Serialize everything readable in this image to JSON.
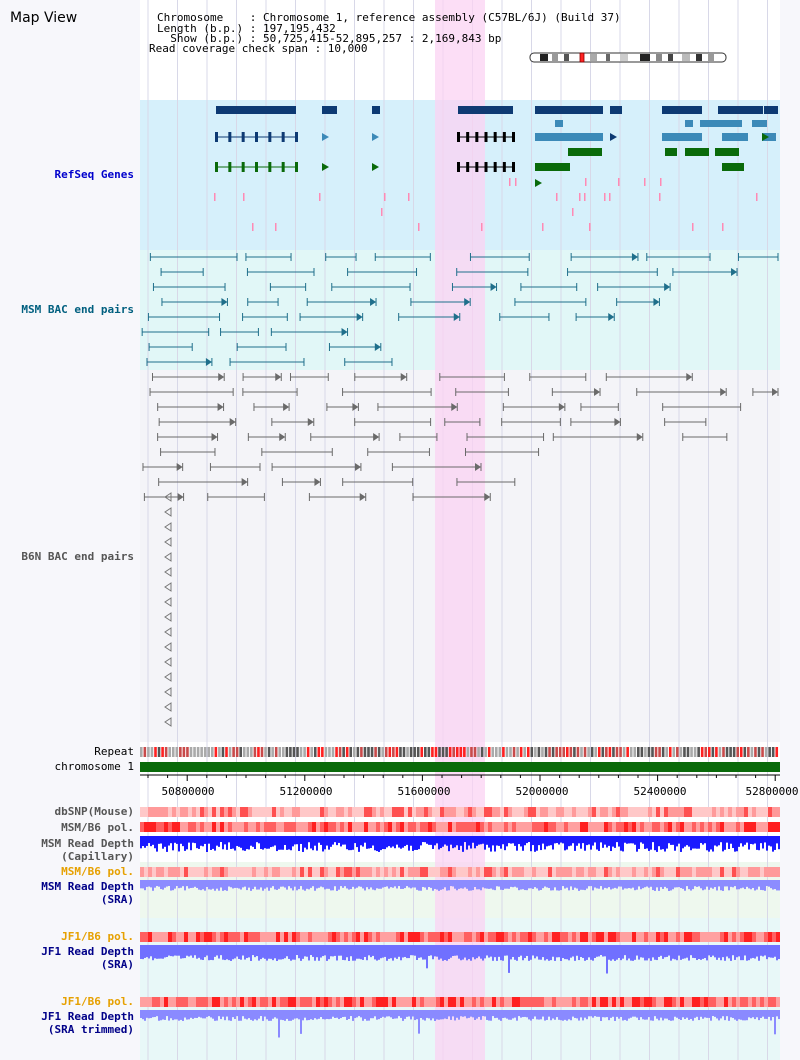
{
  "app": {
    "title": "Map View"
  },
  "info": {
    "line1": "Chromosome    : Chromosome 1, reference assembly (C57BL/6J) (Build 37)",
    "line2": "Length (b.p.) : 197,195,432",
    "line3": "  Show (b.p.) : 50,725,415-52,895,257 : 2,169,843 bp",
    "line4": "Read coverage check span : 10,000"
  },
  "tracks": {
    "refseq": "RefSeq Genes",
    "msm_bac": "MSM BAC end pairs",
    "b6n_bac": "B6N BAC end pairs",
    "repeat": "Repeat",
    "chromosome": "chromosome 1",
    "dbsnp": "dbSNP(Mouse)",
    "msm_b6_pol_1": "MSM/B6 pol.",
    "msm_read_depth_cap_1": "MSM Read Depth",
    "msm_read_depth_cap_2": "(Capillary)",
    "msm_b6_pol_2": "MSM/B6 pol.",
    "msm_read_depth_sra_1": "MSM Read Depth",
    "msm_read_depth_sra_2": "(SRA)",
    "jf1_b6_pol_1": "JF1/B6 pol.",
    "jf1_read_depth_sra_1": "JF1 Read Depth",
    "jf1_read_depth_sra_2": "(SRA)",
    "jf1_b6_pol_2": "JF1/B6 pol.",
    "jf1_read_depth_trim_1": "JF1 Read Depth",
    "jf1_read_depth_trim_2": "(SRA trimmed)"
  },
  "axis": {
    "ticks": [
      "50800000",
      "51200000",
      "51600000",
      "52000000",
      "52400000",
      "52800000"
    ]
  },
  "colors": {
    "refseq_bg": "#d6f0fb",
    "msm_bg": "#e1f7f7",
    "b6n_bg": "#f4f4f8",
    "highlight": "#fbd3f3",
    "gene_navy": "#0d3a73",
    "gene_steel": "#3c8ab8",
    "gene_green": "#0a6a0a",
    "chromosome": "#0a6a0a",
    "depth_blue": "#1a1aff",
    "depth_light": "#8c8cff",
    "pol_red": "#ff5a5a",
    "pol_pink": "#ffb4b4"
  }
}
